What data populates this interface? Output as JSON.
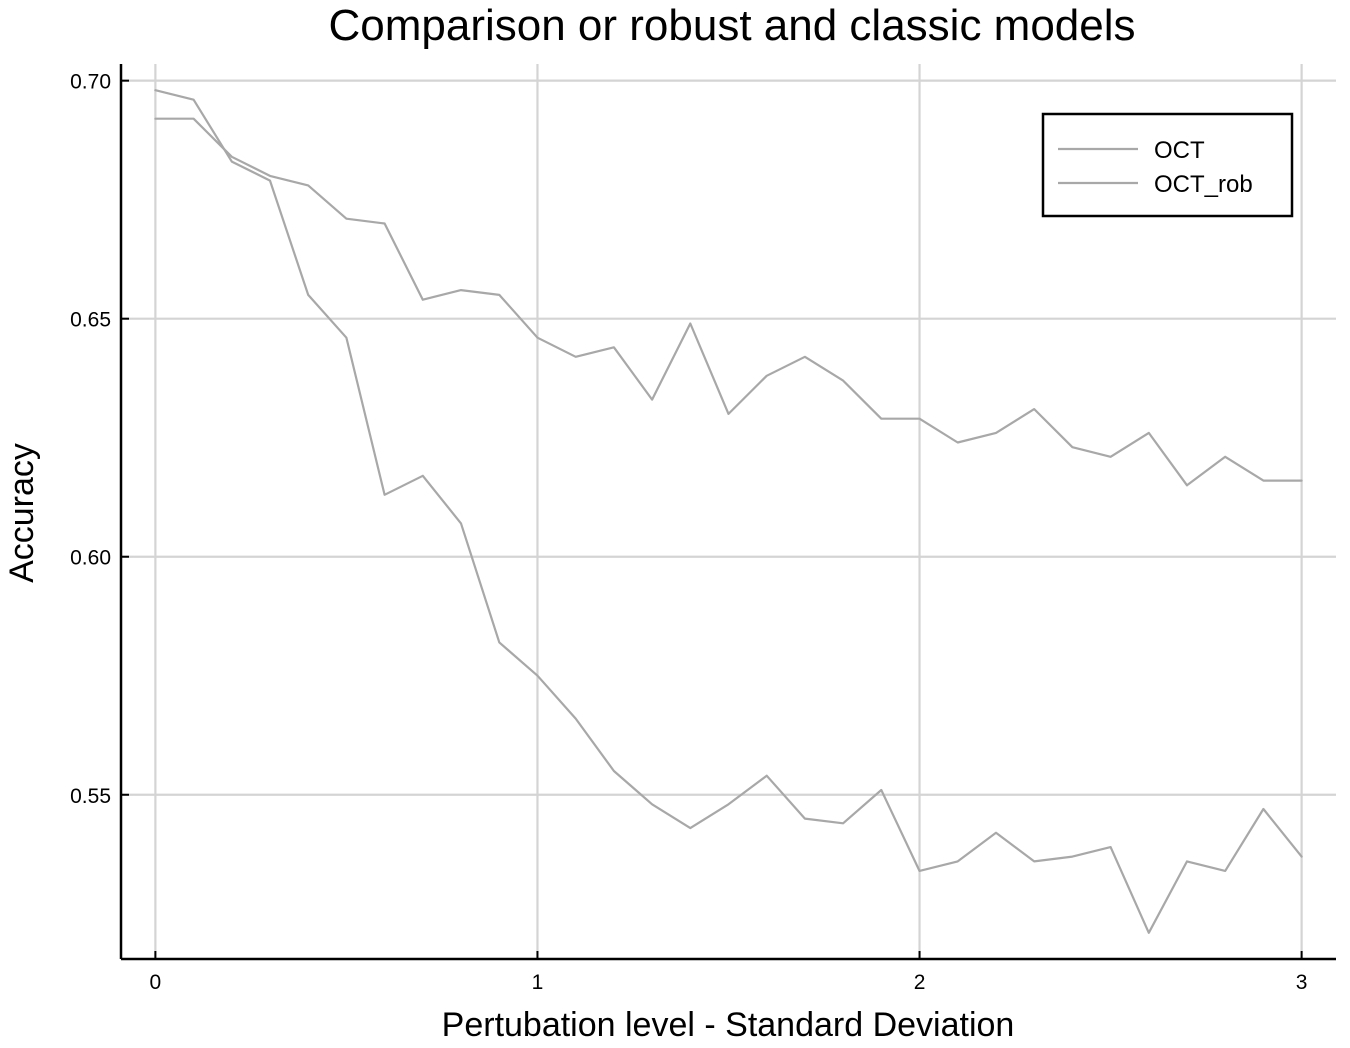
{
  "chart_data": {
    "type": "line",
    "title": "Comparison or robust and classic models",
    "xlabel": "Pertubation level - Standard Deviation",
    "ylabel": "Accuracy",
    "xlim": [
      -0.09,
      3.09
    ],
    "ylim": [
      0.5155,
      0.7035
    ],
    "x_ticks": [
      0,
      1,
      2,
      3
    ],
    "x_tick_labels": [
      "0",
      "1",
      "2",
      "3"
    ],
    "y_ticks": [
      0.55,
      0.6,
      0.65,
      0.7
    ],
    "y_tick_labels": [
      "0.55",
      "0.60",
      "0.65",
      "0.70"
    ],
    "grid": true,
    "legend_position": "top-right",
    "x": [
      0,
      0.1,
      0.2,
      0.3,
      0.4,
      0.5,
      0.6,
      0.7,
      0.8,
      0.9,
      1.0,
      1.1,
      1.2,
      1.3,
      1.4,
      1.5,
      1.6,
      1.7,
      1.8,
      1.9,
      2.0,
      2.1,
      2.2,
      2.3,
      2.4,
      2.5,
      2.6,
      2.7,
      2.8,
      2.9,
      3.0
    ],
    "series": [
      {
        "name": "OCT",
        "color": "#a8a8a8",
        "values": [
          0.698,
          0.696,
          0.683,
          0.679,
          0.655,
          0.646,
          0.613,
          0.617,
          0.607,
          0.582,
          0.575,
          0.566,
          0.555,
          0.548,
          0.543,
          0.548,
          0.554,
          0.545,
          0.544,
          0.551,
          0.534,
          0.536,
          0.542,
          0.536,
          0.537,
          0.539,
          0.521,
          0.536,
          0.534,
          0.547,
          0.537
        ]
      },
      {
        "name": "OCT_rob",
        "color": "#a8a8a8",
        "values": [
          0.692,
          0.692,
          0.684,
          0.68,
          0.678,
          0.671,
          0.67,
          0.654,
          0.656,
          0.655,
          0.646,
          0.642,
          0.644,
          0.633,
          0.649,
          0.63,
          0.638,
          0.642,
          0.637,
          0.629,
          0.629,
          0.624,
          0.626,
          0.631,
          0.623,
          0.621,
          0.626,
          0.615,
          0.621,
          0.616,
          0.616
        ]
      }
    ]
  }
}
